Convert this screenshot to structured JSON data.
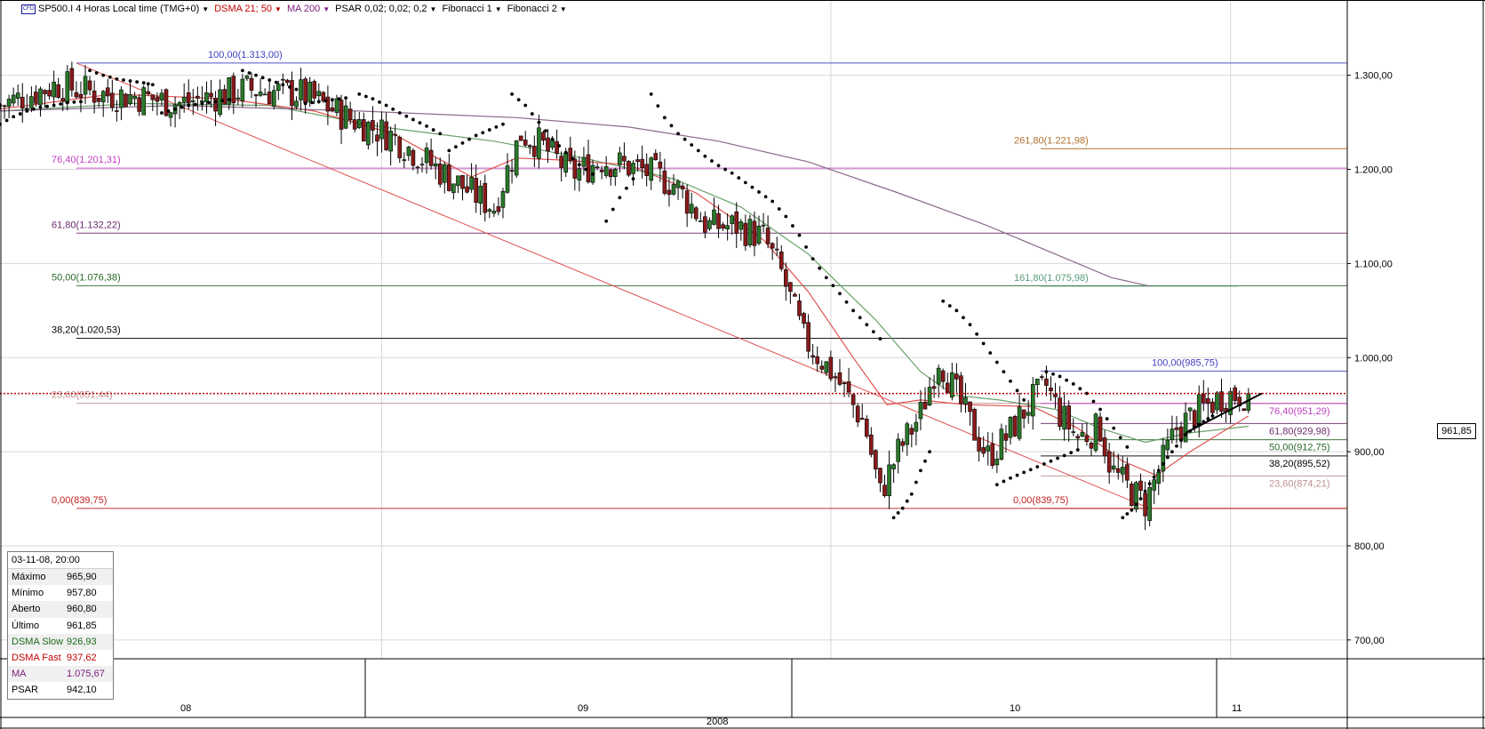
{
  "toolbar": {
    "symbol": "SP500.I 4 Horas Local time (TMG+0)",
    "dsma": "DSMA 21; 50",
    "ma": "MA 200",
    "psar": "PSAR 0,02; 0,02; 0,2",
    "fib1": "Fibonacci 1",
    "fib2": "Fibonacci 2",
    "colors": {
      "dsma": "#c00000",
      "ma": "#7a1a7a",
      "symbol": "#1a1a9a"
    }
  },
  "last_price_tag": "961,85",
  "info_box": {
    "header": "03-11-08, 20:00",
    "rows": [
      {
        "label": "Máximo",
        "value": "965,90",
        "color": "#000000"
      },
      {
        "label": "Mínimo",
        "value": "957,80",
        "color": "#000000"
      },
      {
        "label": "Aberto",
        "value": "960,80",
        "color": "#000000"
      },
      {
        "label": "Último",
        "value": "961,85",
        "color": "#000000"
      },
      {
        "label": "DSMA Slow",
        "value": "926,93",
        "color": "#1a6a1a"
      },
      {
        "label": "DSMA Fast",
        "value": "937,62",
        "color": "#c00000"
      },
      {
        "label": "MA",
        "value": "1.075,67",
        "color": "#7a1a7a"
      },
      {
        "label": "PSAR",
        "value": "942,10",
        "color": "#000000"
      }
    ]
  },
  "chart_data": {
    "type": "candlestick",
    "title": "SP500.I 4 Horas Local time (TMG+0)",
    "year_label": "2008",
    "y_axis": {
      "range": [
        680,
        1380
      ],
      "ticks": [
        {
          "value": 1300,
          "label": "1.300,00"
        },
        {
          "value": 1200,
          "label": "1.200,00"
        },
        {
          "value": 1100,
          "label": "1.100,00"
        },
        {
          "value": 1000,
          "label": "1.000,00"
        },
        {
          "value": 900,
          "label": "900,00"
        },
        {
          "value": 800,
          "label": "800,00"
        },
        {
          "value": 700,
          "label": "700,00"
        }
      ]
    },
    "x_axis": {
      "months": [
        "08",
        "09",
        "10",
        "11"
      ],
      "start_index": 0,
      "end_index": 600
    },
    "price_path": [
      [
        0,
        1268
      ],
      [
        25,
        1290
      ],
      [
        45,
        1280
      ],
      [
        60,
        1278
      ],
      [
        80,
        1270
      ],
      [
        110,
        1285
      ],
      [
        135,
        1280
      ],
      [
        155,
        1255
      ],
      [
        175,
        1235
      ],
      [
        195,
        1200
      ],
      [
        210,
        1175
      ],
      [
        220,
        1160
      ],
      [
        232,
        1238
      ],
      [
        240,
        1228
      ],
      [
        255,
        1195
      ],
      [
        268,
        1210
      ],
      [
        285,
        1200
      ],
      [
        300,
        1185
      ],
      [
        315,
        1140
      ],
      [
        328,
        1140
      ],
      [
        340,
        1128
      ],
      [
        348,
        1090
      ],
      [
        358,
        1020
      ],
      [
        372,
        980
      ],
      [
        385,
        930
      ],
      [
        392,
        855
      ],
      [
        400,
        900
      ],
      [
        410,
        940
      ],
      [
        418,
        1000
      ],
      [
        426,
        960
      ],
      [
        432,
        930
      ],
      [
        440,
        895
      ],
      [
        448,
        915
      ],
      [
        458,
        950
      ],
      [
        466,
        970
      ],
      [
        472,
        940
      ],
      [
        480,
        915
      ],
      [
        490,
        925
      ],
      [
        495,
        880
      ],
      [
        503,
        860
      ],
      [
        510,
        845
      ],
      [
        518,
        890
      ],
      [
        524,
        925
      ],
      [
        535,
        945
      ],
      [
        545,
        960
      ],
      [
        556,
        961.85
      ]
    ],
    "bounds": {
      "high_pct_max": 985.75,
      "low_min": 839.75
    },
    "moving_averages": [
      {
        "name": "DSMA Slow",
        "color": "#6aa06a",
        "points": [
          [
            0,
            1262
          ],
          [
            60,
            1270
          ],
          [
            120,
            1268
          ],
          [
            170,
            1245
          ],
          [
            220,
            1230
          ],
          [
            260,
            1212
          ],
          [
            300,
            1190
          ],
          [
            330,
            1160
          ],
          [
            360,
            1110
          ],
          [
            390,
            1040
          ],
          [
            410,
            985
          ],
          [
            425,
            960
          ],
          [
            445,
            955
          ],
          [
            470,
            945
          ],
          [
            490,
            925
          ],
          [
            510,
            910
          ],
          [
            530,
            920
          ],
          [
            556,
            927
          ]
        ]
      },
      {
        "name": "DSMA Fast",
        "color": "#e05050",
        "points": [
          [
            0,
            1264
          ],
          [
            50,
            1280
          ],
          [
            100,
            1275
          ],
          [
            140,
            1262
          ],
          [
            175,
            1238
          ],
          [
            210,
            1192
          ],
          [
            230,
            1212
          ],
          [
            250,
            1210
          ],
          [
            280,
            1205
          ],
          [
            310,
            1175
          ],
          [
            340,
            1125
          ],
          [
            360,
            1070
          ],
          [
            380,
            1000
          ],
          [
            395,
            950
          ],
          [
            410,
            955
          ],
          [
            430,
            950
          ],
          [
            460,
            948
          ],
          [
            480,
            925
          ],
          [
            500,
            890
          ],
          [
            515,
            875
          ],
          [
            530,
            900
          ],
          [
            556,
            938
          ]
        ]
      },
      {
        "name": "MA 200",
        "color": "#8a6a8a",
        "points": [
          [
            0,
            1262
          ],
          [
            80,
            1268
          ],
          [
            160,
            1262
          ],
          [
            230,
            1255
          ],
          [
            280,
            1245
          ],
          [
            320,
            1230
          ],
          [
            360,
            1208
          ],
          [
            400,
            1175
          ],
          [
            440,
            1140
          ],
          [
            470,
            1110
          ],
          [
            495,
            1085
          ],
          [
            512,
            1076
          ]
        ]
      }
    ],
    "psar": {
      "color": "#000000",
      "segments": [
        [
          [
            0,
            1248
          ],
          [
            6,
            1256
          ],
          [
            12,
            1262
          ],
          [
            18,
            1266
          ],
          [
            24,
            1268
          ],
          [
            30,
            1271
          ],
          [
            36,
            1272
          ]
        ],
        [
          [
            40,
            1305
          ],
          [
            46,
            1300
          ],
          [
            52,
            1296
          ],
          [
            58,
            1294
          ],
          [
            64,
            1292
          ],
          [
            68,
            1290
          ]
        ],
        [
          [
            72,
            1260
          ],
          [
            78,
            1264
          ],
          [
            84,
            1268
          ],
          [
            90,
            1270
          ],
          [
            96,
            1272
          ],
          [
            102,
            1274
          ]
        ],
        [
          [
            108,
            1305
          ],
          [
            114,
            1300
          ],
          [
            120,
            1295
          ],
          [
            126,
            1290
          ],
          [
            132,
            1285
          ]
        ],
        [
          [
            136,
            1270
          ],
          [
            142,
            1272
          ],
          [
            148,
            1274
          ],
          [
            154,
            1276
          ]
        ],
        [
          [
            160,
            1280
          ],
          [
            166,
            1275
          ],
          [
            172,
            1268
          ],
          [
            178,
            1260
          ],
          [
            184,
            1253
          ],
          [
            190,
            1246
          ],
          [
            196,
            1238
          ]
        ],
        [
          [
            200,
            1220
          ],
          [
            206,
            1228
          ],
          [
            212,
            1236
          ],
          [
            218,
            1242
          ],
          [
            224,
            1248
          ]
        ],
        [
          [
            228,
            1280
          ],
          [
            234,
            1268
          ],
          [
            240,
            1250
          ],
          [
            246,
            1232
          ],
          [
            252,
            1218
          ],
          [
            258,
            1205
          ],
          [
            264,
            1195
          ]
        ],
        [
          [
            270,
            1145
          ],
          [
            276,
            1170
          ],
          [
            282,
            1190
          ]
        ],
        [
          [
            290,
            1280
          ],
          [
            296,
            1255
          ],
          [
            302,
            1238
          ],
          [
            308,
            1226
          ],
          [
            314,
            1214
          ],
          [
            320,
            1204
          ],
          [
            326,
            1196
          ],
          [
            332,
            1186
          ],
          [
            338,
            1176
          ],
          [
            344,
            1166
          ],
          [
            350,
            1150
          ],
          [
            356,
            1130
          ],
          [
            362,
            1105
          ],
          [
            368,
            1085
          ],
          [
            374,
            1068
          ],
          [
            380,
            1050
          ],
          [
            386,
            1035
          ],
          [
            392,
            1020
          ]
        ],
        [
          [
            398,
            830
          ],
          [
            402,
            840
          ],
          [
            406,
            855
          ],
          [
            410,
            880
          ],
          [
            414,
            900
          ]
        ],
        [
          [
            420,
            1060
          ],
          [
            426,
            1050
          ],
          [
            432,
            1035
          ],
          [
            438,
            1015
          ],
          [
            444,
            995
          ],
          [
            450,
            975
          ],
          [
            456,
            955
          ]
        ],
        [
          [
            444,
            865
          ],
          [
            450,
            872
          ],
          [
            456,
            878
          ],
          [
            462,
            884
          ],
          [
            468,
            890
          ],
          [
            474,
            896
          ],
          [
            480,
            902
          ]
        ],
        [
          [
            466,
            985
          ],
          [
            472,
            980
          ],
          [
            478,
            972
          ],
          [
            484,
            962
          ],
          [
            490,
            945
          ],
          [
            496,
            925
          ],
          [
            502,
            905
          ]
        ],
        [
          [
            500,
            830
          ],
          [
            504,
            838
          ],
          [
            508,
            850
          ],
          [
            512,
            866
          ],
          [
            516,
            880
          ],
          [
            520,
            894
          ],
          [
            524,
            906
          ],
          [
            528,
            918
          ],
          [
            532,
            926
          ],
          [
            536,
            932
          ],
          [
            540,
            938
          ]
        ]
      ]
    },
    "fibonacci_1": {
      "color_scheme": "multi",
      "trendline": {
        "from": [
          34,
          1313.0
        ],
        "to": [
          512,
          839.75
        ],
        "color": "#e05050"
      },
      "levels": [
        {
          "pct": "100,00",
          "price": "1.313,00",
          "value": 1313.0,
          "color": "#4040c0"
        },
        {
          "pct": "76,40",
          "price": "1.201,31",
          "value": 1201.31,
          "color": "#c040c0"
        },
        {
          "pct": "61,80",
          "price": "1.132,22",
          "value": 1132.22,
          "color": "#6a2a6a"
        },
        {
          "pct": "50,00",
          "price": "1.076,38",
          "value": 1076.38,
          "color": "#2a6a2a"
        },
        {
          "pct": "38,20",
          "price": "1.020,53",
          "value": 1020.53,
          "color": "#000000"
        },
        {
          "pct": "23,60",
          "price": "951,44",
          "value": 951.44,
          "color": "#c09090"
        },
        {
          "pct": "0,00",
          "price": "839,75",
          "value": 839.75,
          "color": "#c02020"
        }
      ],
      "extensions": [
        {
          "pct": "261,80",
          "price": "1.221,98",
          "value": 1221.98,
          "color": "#b07030"
        },
        {
          "pct": "161,80",
          "price": "1.075,98",
          "value": 1075.98,
          "color": "#5a9a7a"
        }
      ]
    },
    "fibonacci_2": {
      "levels": [
        {
          "pct": "100,00",
          "price": "985,75",
          "value": 985.75,
          "color": "#4040c0"
        },
        {
          "pct": "76,40",
          "price": "951,29",
          "value": 951.29,
          "color": "#c040c0"
        },
        {
          "pct": "61,80",
          "price": "929,98",
          "value": 929.98,
          "color": "#6a2a6a"
        },
        {
          "pct": "50,00",
          "price": "912,75",
          "value": 912.75,
          "color": "#2a6a2a"
        },
        {
          "pct": "38,20",
          "price": "895,52",
          "value": 895.52,
          "color": "#000000"
        },
        {
          "pct": "23,60",
          "price": "874,21",
          "value": 874.21,
          "color": "#c09090"
        },
        {
          "pct": "0,00",
          "price": "839,75",
          "value": 839.75,
          "color": "#c02020"
        }
      ]
    },
    "last_price": {
      "value": 961.85,
      "label": "961,85",
      "color": "#c00000"
    },
    "trend_support_line": {
      "from": [
        528,
        920
      ],
      "to": [
        562,
        962
      ],
      "color": "#000000"
    },
    "candle_colors": {
      "up": "#2a7a2a",
      "down": "#8a1a1a",
      "outline": "#000000"
    }
  }
}
